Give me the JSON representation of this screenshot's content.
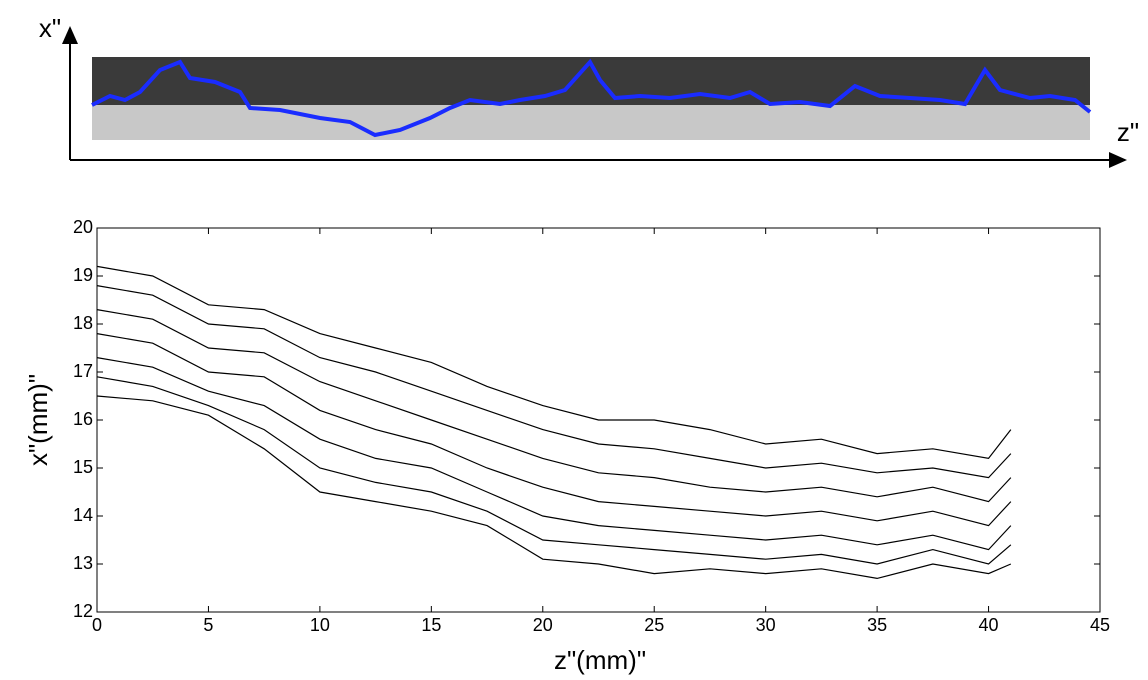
{
  "inset": {
    "x_label": "x\"",
    "z_label": "z\""
  },
  "chart_data": {
    "type": "line",
    "x_label": "z\"(mm)\"",
    "y_label": "x\"(mm)\"",
    "x": [
      0,
      2.5,
      5,
      7.5,
      10,
      12.5,
      15,
      17.5,
      20,
      22.5,
      25,
      27.5,
      30,
      32.5,
      35,
      37.5,
      40,
      41
    ],
    "series": [
      {
        "color": "#000000",
        "values": [
          19.2,
          19.0,
          18.4,
          18.3,
          17.8,
          17.5,
          17.2,
          16.7,
          16.3,
          16.0,
          16.0,
          15.8,
          15.5,
          15.6,
          15.3,
          15.4,
          15.2,
          15.8
        ]
      },
      {
        "color": "#000000",
        "values": [
          18.8,
          18.6,
          18.0,
          17.9,
          17.3,
          17.0,
          16.6,
          16.2,
          15.8,
          15.5,
          15.4,
          15.2,
          15.0,
          15.1,
          14.9,
          15.0,
          14.8,
          15.3
        ]
      },
      {
        "color": "#000000",
        "values": [
          18.3,
          18.1,
          17.5,
          17.4,
          16.8,
          16.4,
          16.0,
          15.6,
          15.2,
          14.9,
          14.8,
          14.6,
          14.5,
          14.6,
          14.4,
          14.6,
          14.3,
          14.8
        ]
      },
      {
        "color": "#000000",
        "values": [
          17.8,
          17.6,
          17.0,
          16.9,
          16.2,
          15.8,
          15.5,
          15.0,
          14.6,
          14.3,
          14.2,
          14.1,
          14.0,
          14.1,
          13.9,
          14.1,
          13.8,
          14.3
        ]
      },
      {
        "color": "#000000",
        "values": [
          17.3,
          17.1,
          16.6,
          16.3,
          15.6,
          15.2,
          15.0,
          14.5,
          14.0,
          13.8,
          13.7,
          13.6,
          13.5,
          13.6,
          13.4,
          13.6,
          13.3,
          13.8
        ]
      },
      {
        "color": "#000000",
        "values": [
          16.9,
          16.7,
          16.3,
          15.8,
          15.0,
          14.7,
          14.5,
          14.1,
          13.5,
          13.4,
          13.3,
          13.2,
          13.1,
          13.2,
          13.0,
          13.3,
          13.0,
          13.4
        ]
      },
      {
        "color": "#000000",
        "values": [
          16.5,
          16.4,
          16.1,
          15.4,
          14.5,
          14.3,
          14.1,
          13.8,
          13.1,
          13.0,
          12.8,
          12.9,
          12.8,
          12.9,
          12.7,
          13.0,
          12.8,
          13.0
        ]
      }
    ],
    "xlim": [
      0,
      45
    ],
    "ylim": [
      12,
      20
    ],
    "xticks": [
      0,
      5,
      10,
      15,
      20,
      25,
      30,
      35,
      40,
      45
    ],
    "yticks": [
      12,
      13,
      14,
      15,
      16,
      17,
      18,
      19,
      20
    ]
  }
}
